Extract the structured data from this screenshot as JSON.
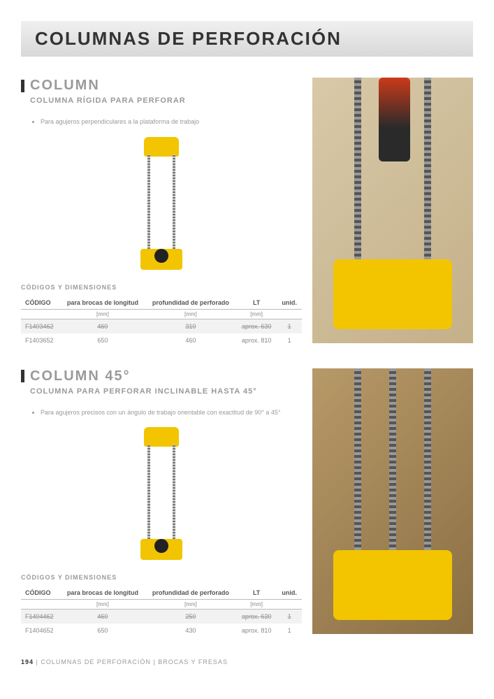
{
  "page_title": "COLUMNAS DE PERFORACIÓN",
  "products": [
    {
      "name": "COLUMN",
      "subtitle": "COLUMNA RÍGIDA PARA PERFORAR",
      "bullets": [
        "Para agujeros perpendiculares a la plataforma de trabajo"
      ],
      "table_caption": "CÓDIGOS Y DIMENSIONES",
      "columns": [
        "CÓDIGO",
        "para brocas de longitud",
        "profundidad de perforado",
        "LT",
        "unid."
      ],
      "units": [
        "",
        "[mm]",
        "[mm]",
        "[mm]",
        ""
      ],
      "rows": [
        {
          "cells": [
            "F1403462",
            "460",
            "310",
            "aprox. 630",
            "1"
          ],
          "struck": true
        },
        {
          "cells": [
            "F1403652",
            "650",
            "460",
            "aprox. 810",
            "1"
          ],
          "struck": false
        }
      ]
    },
    {
      "name": "COLUMN 45°",
      "subtitle": "COLUMNA PARA PERFORAR INCLINABLE HASTA 45°",
      "bullets": [
        "Para agujeros precisos con un ángulo de trabajo orientable con exactitud de 90° a 45°"
      ],
      "table_caption": "CÓDIGOS Y DIMENSIONES",
      "columns": [
        "CÓDIGO",
        "para brocas de longitud",
        "profundidad de perforado",
        "LT",
        "unid."
      ],
      "units": [
        "",
        "[mm]",
        "[mm]",
        "[mm]",
        ""
      ],
      "rows": [
        {
          "cells": [
            "F1404462",
            "460",
            "250",
            "aprox. 630",
            "1"
          ],
          "struck": true
        },
        {
          "cells": [
            "F1404652",
            "650",
            "430",
            "aprox. 810",
            "1"
          ],
          "struck": false
        }
      ]
    }
  ],
  "footer": {
    "page_num": "194",
    "sep": " | ",
    "cat1": "COLUMNAS DE PERFORACIÓN",
    "cat2": "BROCAS Y FRESAS"
  },
  "colors": {
    "tool_yellow": "#f2c500",
    "gray_text": "#9a9a9a",
    "row_alt": "#f2f2f2"
  }
}
